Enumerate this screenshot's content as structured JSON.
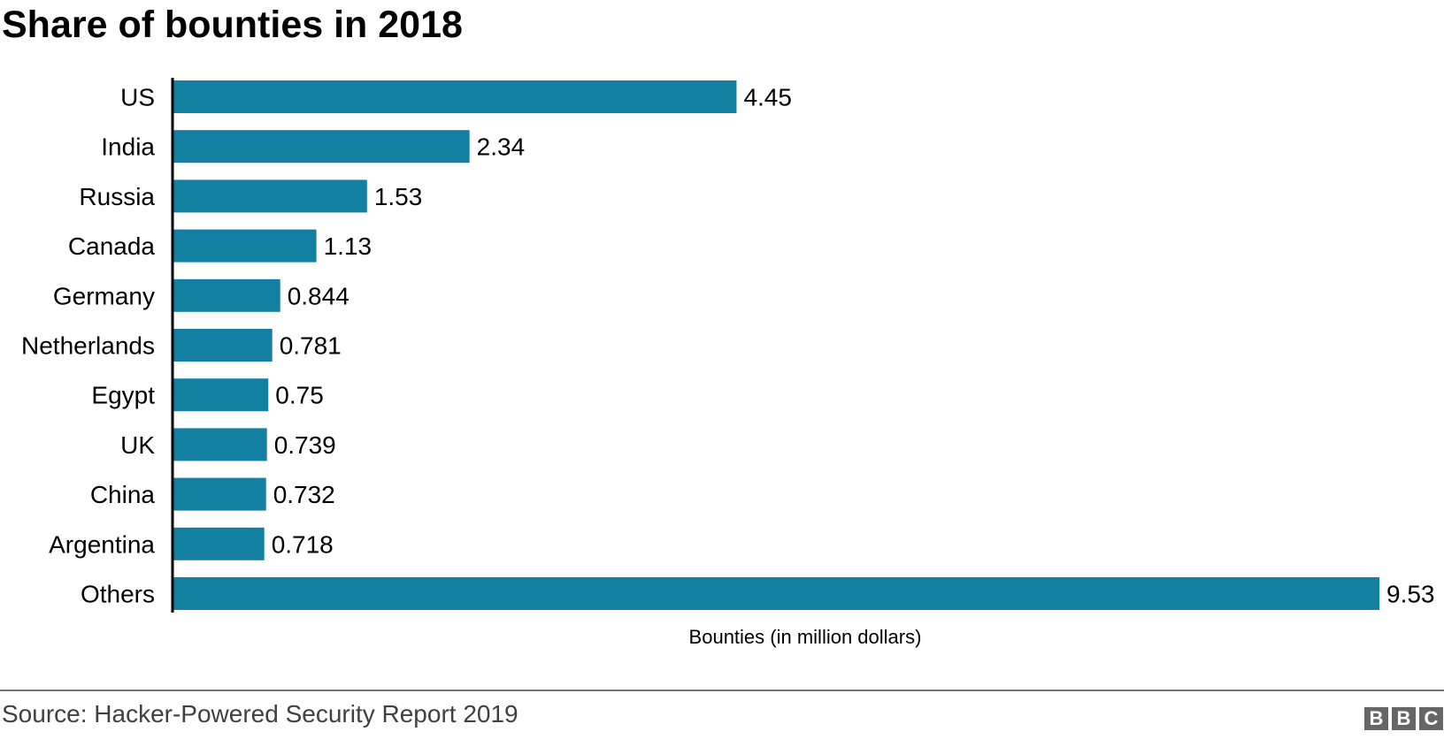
{
  "chart_data": {
    "type": "bar",
    "orientation": "horizontal",
    "title": "Share of bounties in 2018",
    "xlabel": "Bounties (in million dollars)",
    "ylabel": "",
    "categories": [
      "US",
      "India",
      "Russia",
      "Canada",
      "Germany",
      "Netherlands",
      "Egypt",
      "UK",
      "China",
      "Argentina",
      "Others"
    ],
    "values": [
      4.45,
      2.34,
      1.53,
      1.13,
      0.844,
      0.781,
      0.75,
      0.739,
      0.732,
      0.718,
      9.53
    ],
    "data_labels": [
      "4.45",
      "2.34",
      "1.53",
      "1.13",
      "0.844",
      "0.781",
      "0.75",
      "0.739",
      "0.732",
      "0.718",
      "9.53"
    ],
    "xlim": [
      0,
      9.53
    ],
    "grid": false,
    "bar_color": "#1380a1"
  },
  "footer": {
    "source": "Source: Hacker-Powered Security Report 2019",
    "logo": "BBC"
  }
}
